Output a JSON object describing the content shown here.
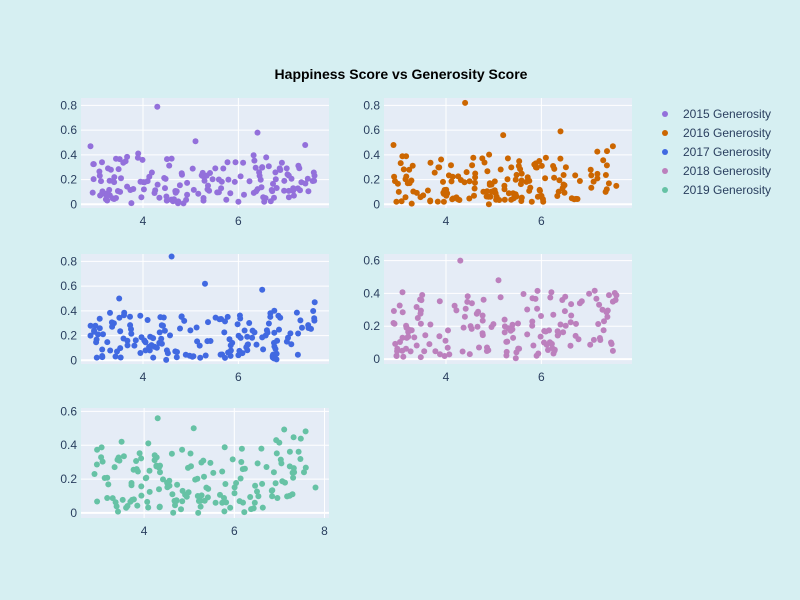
{
  "chart_data": {
    "type": "scatter",
    "title": "Happiness Score vs Generosity Score",
    "xlabel": "",
    "ylabel": "",
    "legend_position": "right",
    "grid": true,
    "colors": {
      "background": "#d6eff2",
      "plot_background": "#e5ecf6",
      "grid": "#ffffff",
      "text": "#2a3f5f"
    },
    "series": [
      {
        "name": "2015 Generosity",
        "color": "#9370db",
        "xlim": [
          2.7,
          7.9
        ],
        "ylim": [
          -0.03,
          0.86
        ],
        "xticks": [
          4,
          6
        ],
        "yticks": [
          0,
          0.2,
          0.4,
          0.6,
          0.8
        ],
        "seed": 15,
        "n": 158,
        "extremes": [
          [
            4.3,
            0.79
          ],
          [
            2.9,
            0.47
          ],
          [
            6.4,
            0.58
          ],
          [
            5.1,
            0.51
          ],
          [
            7.4,
            0.48
          ],
          [
            3.3,
            0.19
          ],
          [
            4.5,
            0.03
          ],
          [
            6.0,
            0.02
          ]
        ]
      },
      {
        "name": "2016 Generosity",
        "color": "#cc6600",
        "xlim": [
          2.7,
          7.9
        ],
        "ylim": [
          -0.03,
          0.86
        ],
        "xticks": [
          4,
          6
        ],
        "yticks": [
          0,
          0.2,
          0.4,
          0.6,
          0.8
        ],
        "seed": 16,
        "n": 157,
        "extremes": [
          [
            4.4,
            0.82
          ],
          [
            6.4,
            0.59
          ],
          [
            2.9,
            0.48
          ],
          [
            5.2,
            0.56
          ],
          [
            7.5,
            0.47
          ],
          [
            3.2,
            0.17
          ],
          [
            4.9,
            0.0
          ],
          [
            5.8,
            0.02
          ]
        ]
      },
      {
        "name": "2017 Generosity",
        "color": "#4169e1",
        "xlim": [
          2.7,
          7.9
        ],
        "ylim": [
          -0.03,
          0.86
        ],
        "xticks": [
          4,
          6
        ],
        "yticks": [
          0,
          0.2,
          0.4,
          0.6,
          0.8
        ],
        "seed": 17,
        "n": 155,
        "extremes": [
          [
            4.6,
            0.84
          ],
          [
            5.3,
            0.62
          ],
          [
            6.5,
            0.57
          ],
          [
            3.5,
            0.5
          ],
          [
            2.9,
            0.2
          ],
          [
            7.6,
            0.47
          ],
          [
            5.2,
            0.02
          ],
          [
            6.0,
            0.04
          ]
        ]
      },
      {
        "name": "2018 Generosity",
        "color": "#bc80bd",
        "xlim": [
          2.7,
          7.9
        ],
        "ylim": [
          -0.03,
          0.64
        ],
        "xticks": [
          4,
          6
        ],
        "yticks": [
          0,
          0.2,
          0.4,
          0.6
        ],
        "seed": 18,
        "n": 156,
        "extremes": [
          [
            4.3,
            0.6
          ],
          [
            5.1,
            0.48
          ],
          [
            3.5,
            0.39
          ],
          [
            6.5,
            0.38
          ],
          [
            7.5,
            0.35
          ],
          [
            2.9,
            0.22
          ],
          [
            4.5,
            0.03
          ],
          [
            5.9,
            0.02
          ]
        ]
      },
      {
        "name": "2019 Generosity",
        "color": "#66c2a5",
        "xlim": [
          2.6,
          8.1
        ],
        "ylim": [
          -0.03,
          0.62
        ],
        "xticks": [
          4,
          6,
          8
        ],
        "yticks": [
          0,
          0.2,
          0.4,
          0.6
        ],
        "seed": 19,
        "n": 156,
        "extremes": [
          [
            4.3,
            0.56
          ],
          [
            5.1,
            0.5
          ],
          [
            3.5,
            0.42
          ],
          [
            6.6,
            0.38
          ],
          [
            2.9,
            0.23
          ],
          [
            7.8,
            0.15
          ],
          [
            5.2,
            0.0
          ],
          [
            3.6,
            0.03
          ]
        ]
      }
    ]
  }
}
